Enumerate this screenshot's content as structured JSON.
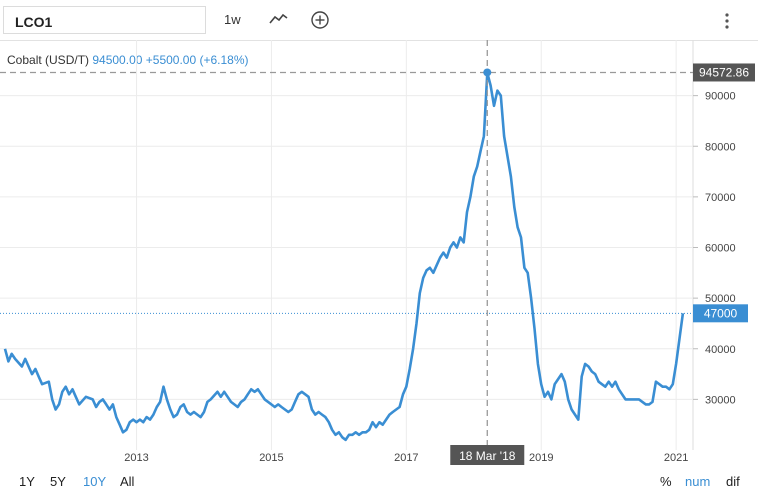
{
  "toolbar": {
    "symbol": "LCO1",
    "period": "1w"
  },
  "legend": {
    "name": "Cobalt (USD/T)",
    "price": "94500.00",
    "change": "+5500.00 (+6.18%)"
  },
  "crosshair": {
    "date_label": "18 Mar '18",
    "value_label": "94572.86",
    "x": 2018.2,
    "y": 94572.86
  },
  "last_price": {
    "label": "47000",
    "value": 47000
  },
  "range_buttons": [
    {
      "label": "1Y",
      "active": false
    },
    {
      "label": "5Y",
      "active": false
    },
    {
      "label": "10Y",
      "active": true
    },
    {
      "label": "All",
      "active": false
    }
  ],
  "mode_buttons": [
    {
      "label": "%",
      "active": false
    },
    {
      "label": "num",
      "active": true
    },
    {
      "label": "dif",
      "active": false
    }
  ],
  "colors": {
    "line": "#3a8ed3",
    "grid": "#ececec",
    "crosshair": "#999999",
    "label_dark": "#555555",
    "label_blue": "#3a8ed3"
  },
  "chart_data": {
    "type": "line",
    "title": "Cobalt (USD/T)",
    "xlim": [
      2011.05,
      2021.25
    ],
    "ylim": [
      20000,
      100000
    ],
    "x_ticks": [
      {
        "value": 2013,
        "label": "2013"
      },
      {
        "value": 2015,
        "label": "2015"
      },
      {
        "value": 2017,
        "label": "2017"
      },
      {
        "value": 2019,
        "label": "2019"
      },
      {
        "value": 2021,
        "label": "2021"
      }
    ],
    "y_ticks": [
      30000,
      40000,
      50000,
      60000,
      70000,
      80000,
      90000
    ],
    "grid": true,
    "series": [
      {
        "points": [
          [
            2011.05,
            40000
          ],
          [
            2011.1,
            37500
          ],
          [
            2011.15,
            39000
          ],
          [
            2011.2,
            38000
          ],
          [
            2011.3,
            36500
          ],
          [
            2011.35,
            38000
          ],
          [
            2011.4,
            36500
          ],
          [
            2011.45,
            35000
          ],
          [
            2011.5,
            36000
          ],
          [
            2011.55,
            34500
          ],
          [
            2011.6,
            33000
          ],
          [
            2011.7,
            33500
          ],
          [
            2011.75,
            30000
          ],
          [
            2011.8,
            28000
          ],
          [
            2011.85,
            29000
          ],
          [
            2011.9,
            31500
          ],
          [
            2011.95,
            32500
          ],
          [
            2012.0,
            31000
          ],
          [
            2012.05,
            32000
          ],
          [
            2012.1,
            30500
          ],
          [
            2012.15,
            29000
          ],
          [
            2012.25,
            30500
          ],
          [
            2012.35,
            30000
          ],
          [
            2012.4,
            28500
          ],
          [
            2012.45,
            29500
          ],
          [
            2012.5,
            30000
          ],
          [
            2012.55,
            29000
          ],
          [
            2012.6,
            28000
          ],
          [
            2012.65,
            29000
          ],
          [
            2012.7,
            26500
          ],
          [
            2012.75,
            25000
          ],
          [
            2012.8,
            23500
          ],
          [
            2012.85,
            24000
          ],
          [
            2012.9,
            25500
          ],
          [
            2012.95,
            26000
          ],
          [
            2013.0,
            25500
          ],
          [
            2013.05,
            26000
          ],
          [
            2013.1,
            25500
          ],
          [
            2013.15,
            26500
          ],
          [
            2013.2,
            26000
          ],
          [
            2013.25,
            27000
          ],
          [
            2013.3,
            28500
          ],
          [
            2013.35,
            29500
          ],
          [
            2013.4,
            32500
          ],
          [
            2013.45,
            30000
          ],
          [
            2013.5,
            28000
          ],
          [
            2013.55,
            26500
          ],
          [
            2013.6,
            27000
          ],
          [
            2013.65,
            28500
          ],
          [
            2013.7,
            29000
          ],
          [
            2013.75,
            27500
          ],
          [
            2013.8,
            27000
          ],
          [
            2013.85,
            27500
          ],
          [
            2013.95,
            26500
          ],
          [
            2014.0,
            27500
          ],
          [
            2014.05,
            29500
          ],
          [
            2014.1,
            30000
          ],
          [
            2014.2,
            31500
          ],
          [
            2014.25,
            30500
          ],
          [
            2014.3,
            31500
          ],
          [
            2014.35,
            30500
          ],
          [
            2014.4,
            29500
          ],
          [
            2014.45,
            29000
          ],
          [
            2014.5,
            28500
          ],
          [
            2014.55,
            29500
          ],
          [
            2014.6,
            30000
          ],
          [
            2014.65,
            31000
          ],
          [
            2014.7,
            32000
          ],
          [
            2014.75,
            31500
          ],
          [
            2014.8,
            32000
          ],
          [
            2014.85,
            31000
          ],
          [
            2014.9,
            30000
          ],
          [
            2014.95,
            29500
          ],
          [
            2015.05,
            28500
          ],
          [
            2015.1,
            29000
          ],
          [
            2015.15,
            28500
          ],
          [
            2015.2,
            28000
          ],
          [
            2015.25,
            27500
          ],
          [
            2015.3,
            28000
          ],
          [
            2015.35,
            29500
          ],
          [
            2015.4,
            31000
          ],
          [
            2015.45,
            31500
          ],
          [
            2015.5,
            31000
          ],
          [
            2015.55,
            30500
          ],
          [
            2015.6,
            28000
          ],
          [
            2015.65,
            27000
          ],
          [
            2015.7,
            27500
          ],
          [
            2015.75,
            27000
          ],
          [
            2015.8,
            26500
          ],
          [
            2015.85,
            25500
          ],
          [
            2015.9,
            24000
          ],
          [
            2015.95,
            23000
          ],
          [
            2016.0,
            23500
          ],
          [
            2016.05,
            22500
          ],
          [
            2016.1,
            22000
          ],
          [
            2016.15,
            23000
          ],
          [
            2016.2,
            23000
          ],
          [
            2016.25,
            23500
          ],
          [
            2016.3,
            23000
          ],
          [
            2016.35,
            23500
          ],
          [
            2016.4,
            23500
          ],
          [
            2016.45,
            24000
          ],
          [
            2016.5,
            25500
          ],
          [
            2016.55,
            24500
          ],
          [
            2016.6,
            25500
          ],
          [
            2016.65,
            25000
          ],
          [
            2016.7,
            26000
          ],
          [
            2016.75,
            27000
          ],
          [
            2016.8,
            27500
          ],
          [
            2016.85,
            28000
          ],
          [
            2016.9,
            28500
          ],
          [
            2016.95,
            31000
          ],
          [
            2017.0,
            32500
          ],
          [
            2017.05,
            36000
          ],
          [
            2017.1,
            40000
          ],
          [
            2017.15,
            45000
          ],
          [
            2017.2,
            51000
          ],
          [
            2017.25,
            54000
          ],
          [
            2017.3,
            55500
          ],
          [
            2017.35,
            56000
          ],
          [
            2017.4,
            55000
          ],
          [
            2017.45,
            56500
          ],
          [
            2017.5,
            58000
          ],
          [
            2017.55,
            59000
          ],
          [
            2017.6,
            58000
          ],
          [
            2017.65,
            60000
          ],
          [
            2017.7,
            61000
          ],
          [
            2017.75,
            60000
          ],
          [
            2017.8,
            62000
          ],
          [
            2017.85,
            61000
          ],
          [
            2017.9,
            67000
          ],
          [
            2017.95,
            70000
          ],
          [
            2018.0,
            74000
          ],
          [
            2018.05,
            76000
          ],
          [
            2018.1,
            79000
          ],
          [
            2018.15,
            82000
          ],
          [
            2018.2,
            94500
          ],
          [
            2018.25,
            92000
          ],
          [
            2018.3,
            88000
          ],
          [
            2018.35,
            91000
          ],
          [
            2018.4,
            90000
          ],
          [
            2018.45,
            82000
          ],
          [
            2018.5,
            78000
          ],
          [
            2018.55,
            74000
          ],
          [
            2018.6,
            68000
          ],
          [
            2018.65,
            64000
          ],
          [
            2018.7,
            62000
          ],
          [
            2018.75,
            56000
          ],
          [
            2018.8,
            55000
          ],
          [
            2018.85,
            50000
          ],
          [
            2018.9,
            44000
          ],
          [
            2018.95,
            37000
          ],
          [
            2019.0,
            33000
          ],
          [
            2019.05,
            30500
          ],
          [
            2019.1,
            31500
          ],
          [
            2019.15,
            30000
          ],
          [
            2019.2,
            33000
          ],
          [
            2019.3,
            35000
          ],
          [
            2019.35,
            33500
          ],
          [
            2019.4,
            30000
          ],
          [
            2019.45,
            28000
          ],
          [
            2019.5,
            27000
          ],
          [
            2019.55,
            26000
          ],
          [
            2019.6,
            34500
          ],
          [
            2019.65,
            37000
          ],
          [
            2019.7,
            36500
          ],
          [
            2019.75,
            35500
          ],
          [
            2019.8,
            35000
          ],
          [
            2019.85,
            33500
          ],
          [
            2019.9,
            33000
          ],
          [
            2019.95,
            32500
          ],
          [
            2020.0,
            33500
          ],
          [
            2020.05,
            32500
          ],
          [
            2020.1,
            33500
          ],
          [
            2020.15,
            32000
          ],
          [
            2020.25,
            30000
          ],
          [
            2020.35,
            30000
          ],
          [
            2020.45,
            30000
          ],
          [
            2020.55,
            29000
          ],
          [
            2020.6,
            29000
          ],
          [
            2020.65,
            29500
          ],
          [
            2020.7,
            33500
          ],
          [
            2020.75,
            33000
          ],
          [
            2020.8,
            32500
          ],
          [
            2020.85,
            32500
          ],
          [
            2020.9,
            32000
          ],
          [
            2020.95,
            33000
          ],
          [
            2021.0,
            37000
          ],
          [
            2021.05,
            42000
          ],
          [
            2021.1,
            47000
          ]
        ]
      }
    ]
  }
}
